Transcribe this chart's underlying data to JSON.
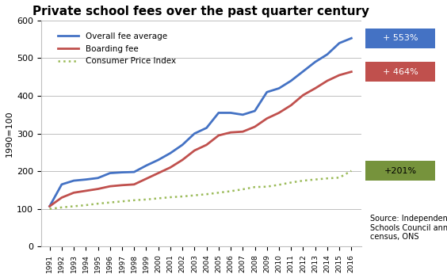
{
  "title": "Private school fees over the past quarter century",
  "ylabel": "1990=100",
  "years": [
    1991,
    1992,
    1993,
    1994,
    1995,
    1996,
    1997,
    1998,
    1999,
    2000,
    2001,
    2002,
    2003,
    2004,
    2005,
    2006,
    2007,
    2008,
    2009,
    2010,
    2011,
    2012,
    2013,
    2014,
    2015,
    2016
  ],
  "overall_fee": [
    107,
    165,
    175,
    178,
    182,
    195,
    197,
    198,
    215,
    230,
    248,
    270,
    300,
    315,
    355,
    355,
    350,
    360,
    410,
    420,
    440,
    465,
    490,
    510,
    540,
    553
  ],
  "boarding_fee": [
    107,
    130,
    143,
    148,
    153,
    160,
    163,
    165,
    180,
    195,
    210,
    230,
    255,
    270,
    295,
    303,
    305,
    318,
    340,
    355,
    375,
    402,
    420,
    440,
    455,
    464
  ],
  "cpi": [
    100,
    104,
    107,
    110,
    114,
    117,
    120,
    123,
    125,
    128,
    131,
    133,
    136,
    139,
    143,
    147,
    152,
    158,
    159,
    164,
    170,
    175,
    178,
    181,
    183,
    201
  ],
  "overall_color": "#4472C4",
  "boarding_color": "#C0504D",
  "cpi_color": "#9BBB59",
  "label_553_color": "#4472C4",
  "label_464_color": "#C0504D",
  "label_201_color": "#76933C",
  "ylim": [
    0,
    600
  ],
  "source_text": "Source: Independent\nSchools Council annual\ncensus, ONS",
  "annotation_553": "+ 553%",
  "annotation_464": "+ 464%",
  "annotation_201": "+201%"
}
